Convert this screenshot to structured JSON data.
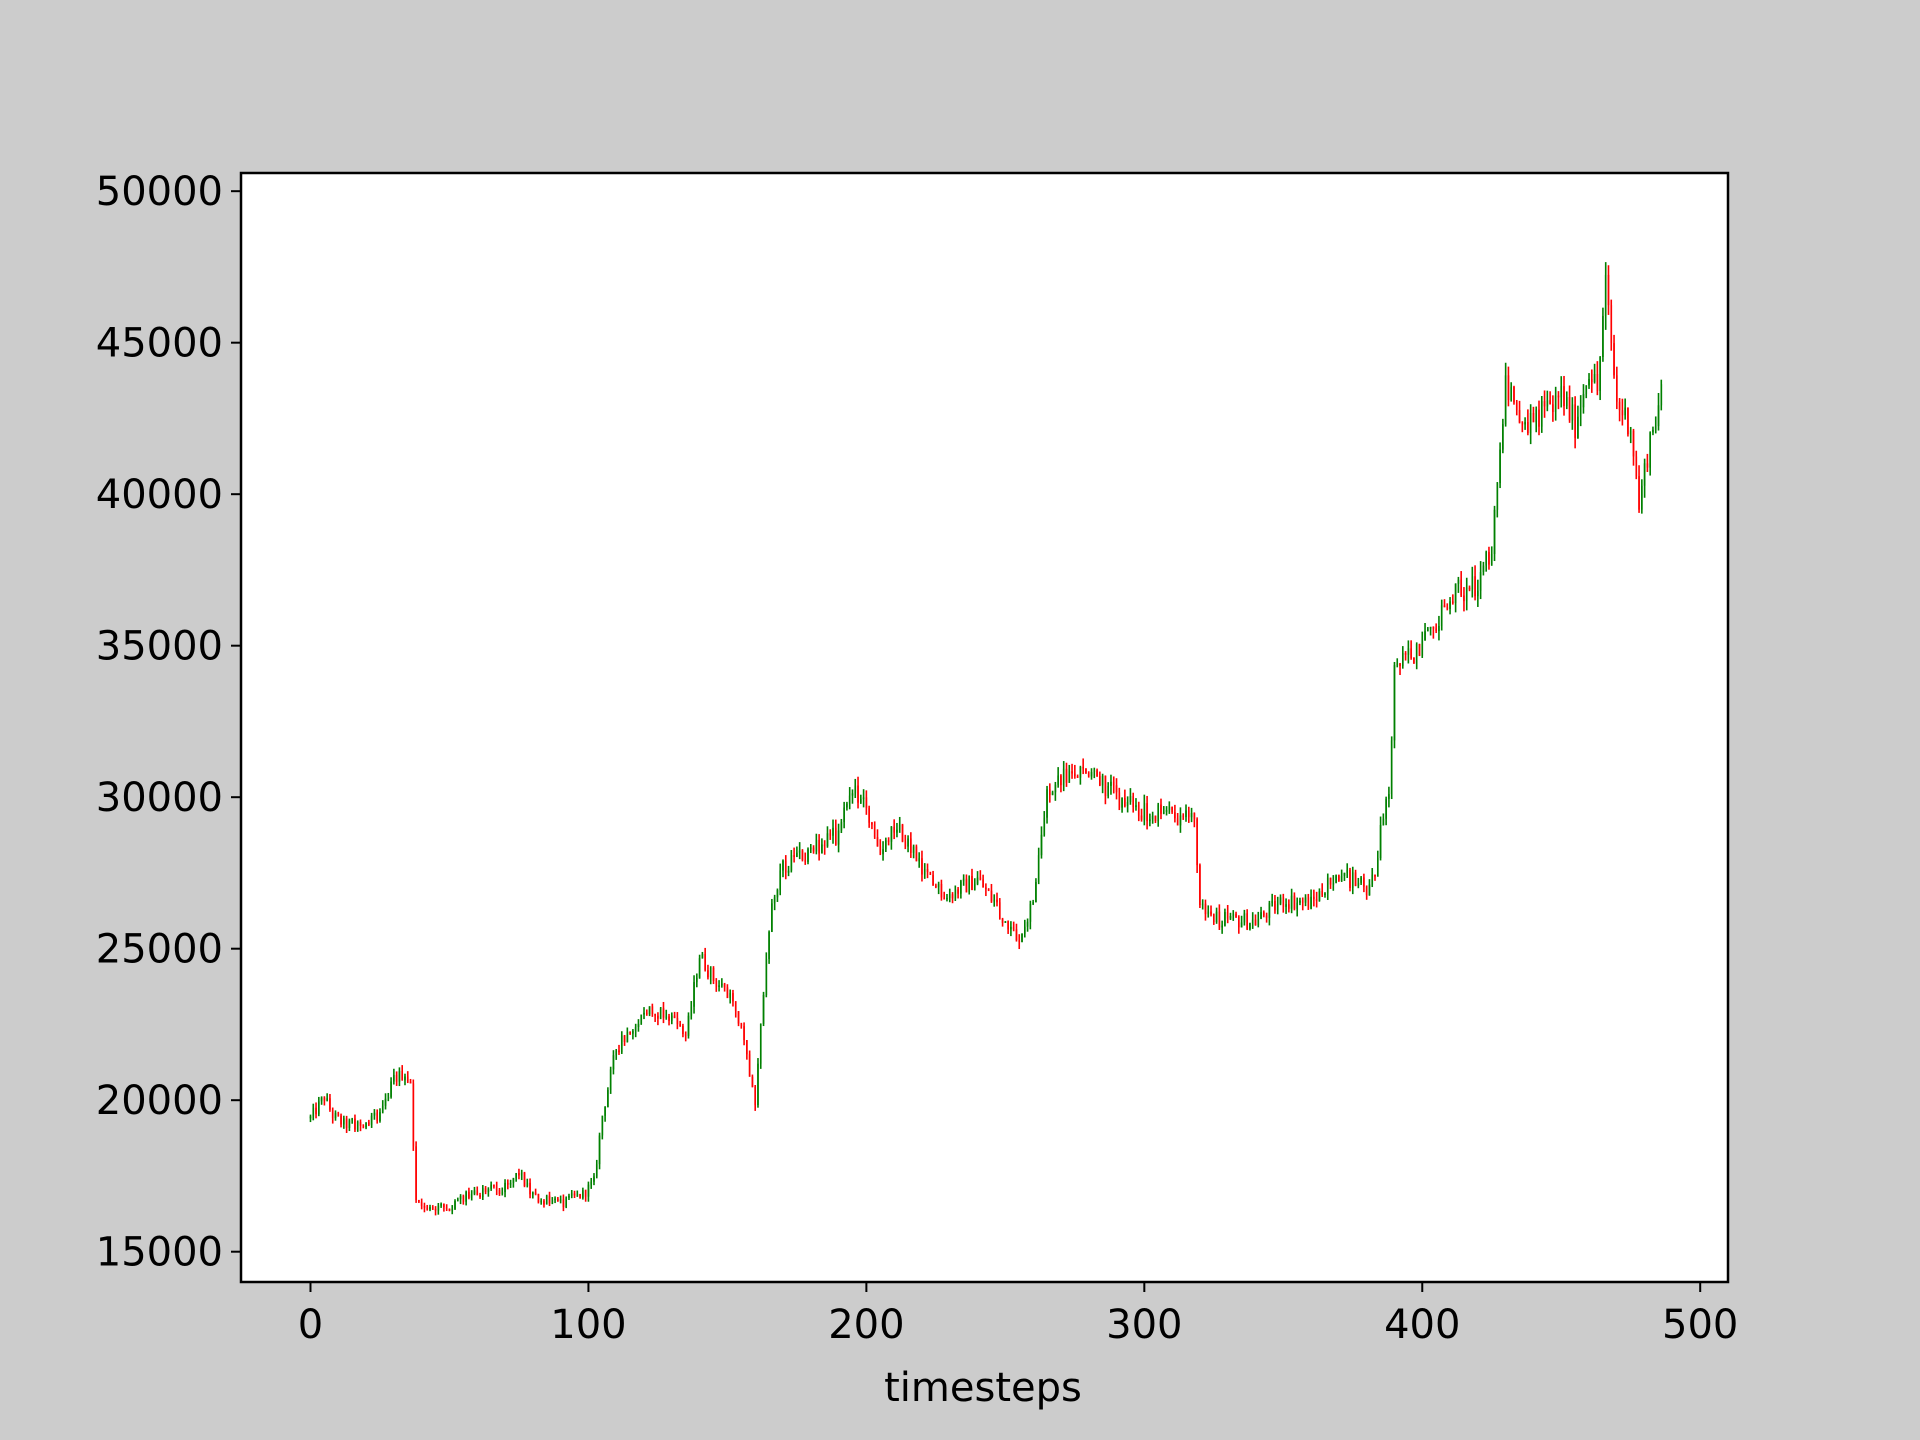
{
  "chart_data": {
    "type": "candlestick",
    "title": "",
    "xlabel": "timesteps",
    "ylabel": "",
    "xlim": [
      -25,
      510
    ],
    "ylim": [
      14000,
      50600
    ],
    "xticks": [
      0,
      100,
      200,
      300,
      400,
      500
    ],
    "yticks": [
      15000,
      20000,
      25000,
      30000,
      35000,
      40000,
      45000,
      50000
    ],
    "grid": false,
    "legend": "none",
    "n_points": 487,
    "colors": {
      "up": "#008000",
      "down": "#ff0000",
      "frame": "#000000",
      "plot_bg": "#ffffff",
      "figure_bg": "#cccccc"
    },
    "trend_anchors": {
      "x": [
        0,
        5,
        8,
        12,
        20,
        25,
        30,
        34,
        36,
        38,
        42,
        50,
        60,
        70,
        75,
        80,
        90,
        98,
        102,
        105,
        110,
        120,
        130,
        135,
        140,
        145,
        150,
        155,
        160,
        163,
        166,
        170,
        180,
        190,
        195,
        200,
        205,
        210,
        215,
        220,
        225,
        230,
        240,
        250,
        255,
        260,
        265,
        270,
        280,
        290,
        300,
        310,
        318,
        320,
        325,
        340,
        350,
        360,
        370,
        380,
        383,
        385,
        388,
        390,
        400,
        410,
        420,
        425,
        430,
        435,
        440,
        450,
        455,
        460,
        463,
        466,
        470,
        475,
        478,
        482,
        486
      ],
      "y": [
        19400,
        20100,
        19500,
        19200,
        19200,
        19600,
        20700,
        20900,
        20500,
        16600,
        16400,
        16500,
        17000,
        17100,
        17600,
        16800,
        16600,
        16900,
        17300,
        19500,
        21700,
        23000,
        22800,
        22000,
        24800,
        24000,
        23500,
        22500,
        20000,
        23500,
        26500,
        27700,
        28200,
        28800,
        30200,
        29800,
        28000,
        29000,
        28500,
        27500,
        27000,
        26800,
        27300,
        26000,
        25400,
        26500,
        30200,
        30600,
        30900,
        30000,
        29500,
        29400,
        29300,
        26400,
        26000,
        25900,
        26600,
        26500,
        27500,
        27000,
        27300,
        29000,
        30000,
        34200,
        35000,
        36700,
        37000,
        38200,
        43800,
        42000,
        42500,
        43300,
        42300,
        44200,
        43400,
        46900,
        43000,
        42300,
        39600,
        41900,
        43200
      ]
    }
  }
}
